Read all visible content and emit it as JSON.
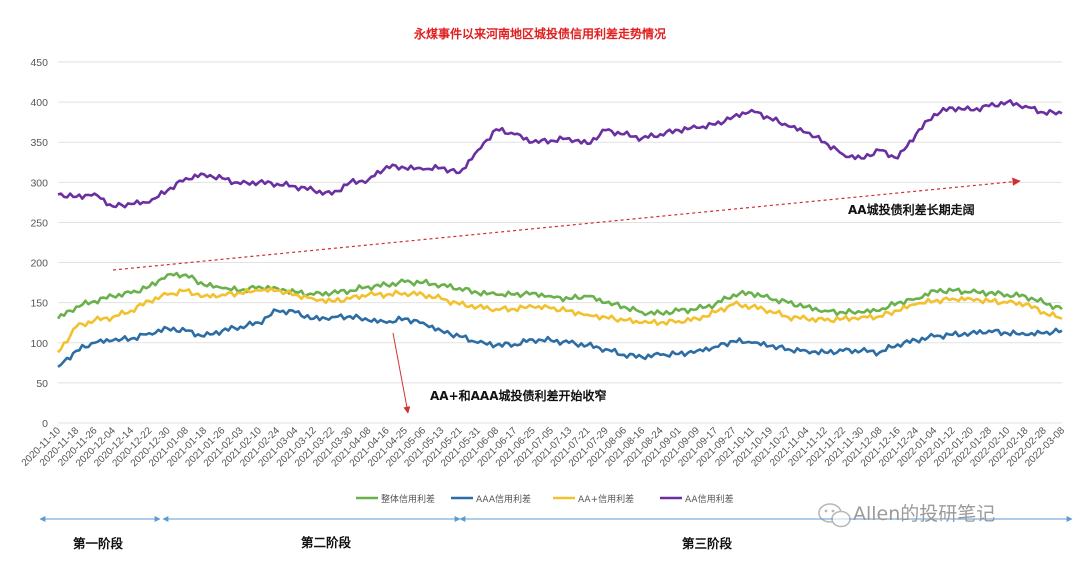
{
  "chart_data": {
    "type": "line",
    "title": "永煤事件以来河南地区城投债信用利差走势情况",
    "xlabel": "",
    "ylabel": "",
    "ylim": [
      0,
      450
    ],
    "yticks": [
      0,
      50,
      100,
      150,
      200,
      250,
      300,
      350,
      400,
      450
    ],
    "grid": "horizontal",
    "legend_position": "bottom",
    "categories": [
      "2020-11-10",
      "2020-11-18",
      "2020-11-26",
      "2020-12-04",
      "2020-12-14",
      "2020-12-22",
      "2020-12-30",
      "2021-01-08",
      "2021-01-18",
      "2021-01-26",
      "2021-02-03",
      "2021-02-10",
      "2021-02-24",
      "2021-03-04",
      "2021-03-12",
      "2021-03-22",
      "2021-03-30",
      "2021-04-08",
      "2021-04-16",
      "2021-04-25",
      "2021-05-06",
      "2021-05-13",
      "2021-05-21",
      "2021-05-31",
      "2021-06-08",
      "2021-06-17",
      "2021-06-25",
      "2021-07-05",
      "2021-07-13",
      "2021-07-21",
      "2021-07-29",
      "2021-08-06",
      "2021-08-16",
      "2021-08-24",
      "2021-09-01",
      "2021-09-09",
      "2021-09-17",
      "2021-09-27",
      "2021-10-11",
      "2021-10-19",
      "2021-10-27",
      "2021-11-04",
      "2021-11-12",
      "2021-11-22",
      "2021-11-30",
      "2021-12-08",
      "2021-12-16",
      "2021-12-24",
      "2022-01-04",
      "2022-01-12",
      "2022-01-20",
      "2022-01-28",
      "2022-02-10",
      "2022-02-18",
      "2022-02-28",
      "2022-03-08"
    ],
    "series": [
      {
        "name": "整体信用利差",
        "color": "#6ab04c",
        "values": [
          130,
          145,
          152,
          158,
          162,
          170,
          185,
          185,
          172,
          168,
          165,
          170,
          168,
          163,
          160,
          162,
          165,
          170,
          172,
          176,
          175,
          172,
          168,
          162,
          160,
          160,
          162,
          158,
          155,
          158,
          150,
          145,
          138,
          137,
          140,
          142,
          148,
          160,
          162,
          155,
          150,
          145,
          140,
          138,
          138,
          140,
          150,
          155,
          165,
          165,
          163,
          162,
          160,
          158,
          150,
          142
        ]
      },
      {
        "name": "AAA信用利差",
        "color": "#2e6da4",
        "values": [
          70,
          90,
          100,
          103,
          105,
          112,
          118,
          115,
          108,
          115,
          120,
          125,
          140,
          138,
          130,
          132,
          133,
          128,
          125,
          130,
          125,
          115,
          108,
          100,
          97,
          98,
          104,
          103,
          100,
          97,
          92,
          85,
          82,
          85,
          86,
          90,
          95,
          102,
          100,
          96,
          92,
          90,
          88,
          90,
          90,
          88,
          98,
          103,
          108,
          110,
          112,
          115,
          112,
          110,
          112,
          115
        ]
      },
      {
        "name": "AA+信用利差",
        "color": "#f2c12e",
        "values": [
          88,
          120,
          128,
          132,
          140,
          152,
          160,
          165,
          158,
          160,
          162,
          165,
          165,
          160,
          155,
          152,
          155,
          160,
          160,
          162,
          160,
          155,
          148,
          145,
          142,
          142,
          145,
          143,
          140,
          135,
          132,
          128,
          125,
          125,
          127,
          130,
          138,
          148,
          145,
          140,
          132,
          130,
          128,
          130,
          132,
          133,
          140,
          148,
          152,
          155,
          155,
          152,
          150,
          148,
          138,
          130
        ]
      },
      {
        "name": "AA信用利差",
        "color": "#6a2fa0",
        "values": [
          285,
          282,
          286,
          270,
          273,
          275,
          290,
          305,
          310,
          305,
          298,
          300,
          298,
          295,
          290,
          285,
          300,
          303,
          320,
          318,
          316,
          318,
          312,
          340,
          366,
          360,
          350,
          352,
          355,
          348,
          365,
          360,
          355,
          360,
          365,
          368,
          372,
          382,
          390,
          380,
          370,
          362,
          350,
          335,
          330,
          340,
          330,
          360,
          385,
          393,
          390,
          395,
          400,
          395,
          387,
          386
        ]
      }
    ],
    "annotations": [
      {
        "text": "AA城投债利差长期走阔"
      },
      {
        "text": "AA+和AAA城投债利差开始收窄"
      }
    ],
    "stages": [
      {
        "label": "第一阶段"
      },
      {
        "label": "第二阶段"
      },
      {
        "label": "第三阶段"
      }
    ]
  },
  "watermark": {
    "text": "Allen的投研笔记"
  }
}
